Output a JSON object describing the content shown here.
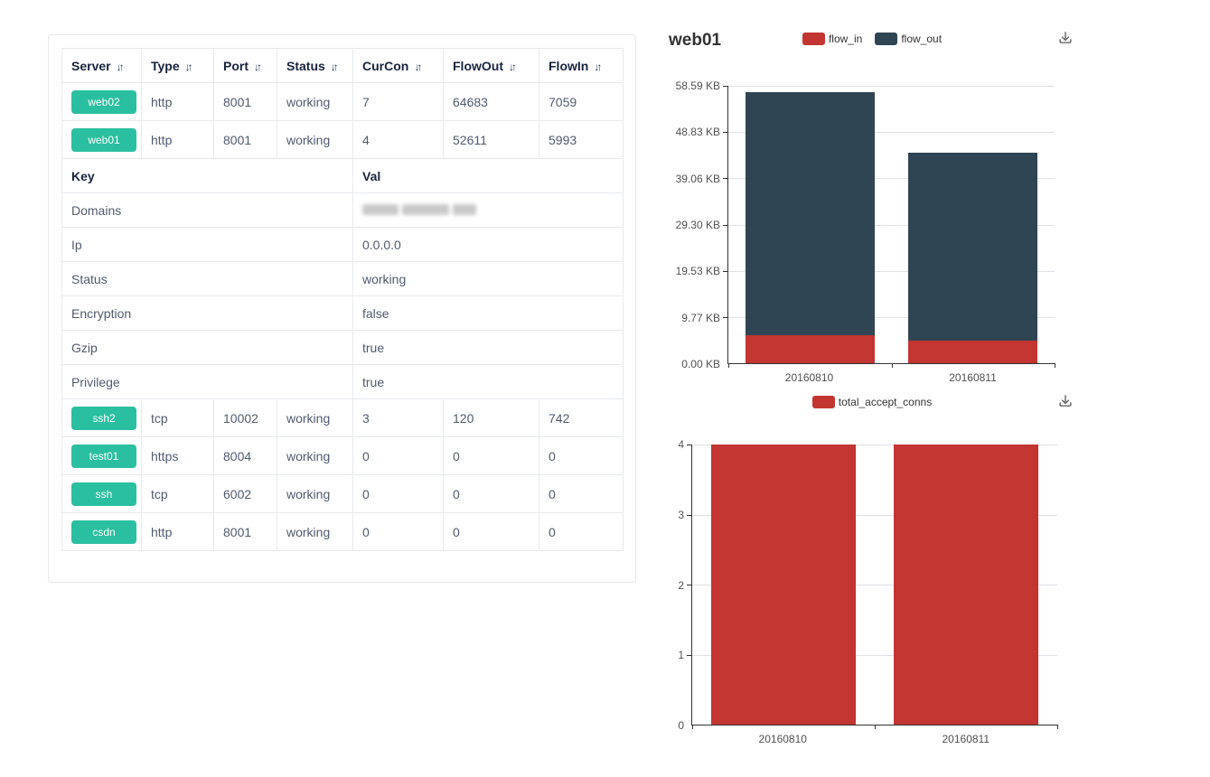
{
  "colors": {
    "accent_green": "#2abfa0",
    "bar_red": "#c23531",
    "bar_slate": "#2f4554",
    "table_border": "#e8eaec",
    "header_text": "#17233d",
    "cell_text": "#515a6e"
  },
  "table": {
    "sort_icon": "↓↑",
    "columns": [
      "Server",
      "Type",
      "Port",
      "Status",
      "CurCon",
      "FlowOut",
      "FlowIn"
    ],
    "rows_top": [
      {
        "server": "web02",
        "type": "http",
        "port": "8001",
        "status": "working",
        "curcon": "7",
        "flowout": "64683",
        "flowin": "7059"
      },
      {
        "server": "web01",
        "type": "http",
        "port": "8001",
        "status": "working",
        "curcon": "4",
        "flowout": "52611",
        "flowin": "5993"
      }
    ],
    "detail": {
      "key_header": "Key",
      "val_header": "Val",
      "rows": [
        {
          "key": "Domains",
          "val": "",
          "redacted": true
        },
        {
          "key": "Ip",
          "val": "0.0.0.0"
        },
        {
          "key": "Status",
          "val": "working"
        },
        {
          "key": "Encryption",
          "val": "false"
        },
        {
          "key": "Gzip",
          "val": "true"
        },
        {
          "key": "Privilege",
          "val": "true"
        }
      ]
    },
    "rows_bottom": [
      {
        "server": "ssh2",
        "type": "tcp",
        "port": "10002",
        "status": "working",
        "curcon": "3",
        "flowout": "120",
        "flowin": "742"
      },
      {
        "server": "test01",
        "type": "https",
        "port": "8004",
        "status": "working",
        "curcon": "0",
        "flowout": "0",
        "flowin": "0"
      },
      {
        "server": "ssh",
        "type": "tcp",
        "port": "6002",
        "status": "working",
        "curcon": "0",
        "flowout": "0",
        "flowin": "0"
      },
      {
        "server": "csdn",
        "type": "http",
        "port": "8001",
        "status": "working",
        "curcon": "0",
        "flowout": "0",
        "flowin": "0"
      }
    ]
  },
  "chart_data": [
    {
      "type": "bar",
      "stacked": true,
      "title": "web01",
      "categories": [
        "20160810",
        "20160811"
      ],
      "series": [
        {
          "name": "flow_in",
          "color": "#c23531",
          "values": [
            5.85,
            4.79
          ]
        },
        {
          "name": "flow_out",
          "color": "#2f4554",
          "values": [
            51.38,
            39.72
          ]
        }
      ],
      "unit": "KB",
      "ylim": [
        0,
        58.59
      ],
      "y_ticks": [
        "58.59 KB",
        "48.83 KB",
        "39.06 KB",
        "29.30 KB",
        "19.53 KB",
        "9.77 KB",
        "0.00 KB"
      ],
      "grid": true,
      "legend_position": "top-center",
      "toolbox": [
        "save-as-image"
      ]
    },
    {
      "type": "bar",
      "stacked": false,
      "title": "",
      "categories": [
        "20160810",
        "20160811"
      ],
      "series": [
        {
          "name": "total_accept_conns",
          "color": "#c23531",
          "values": [
            4,
            4
          ]
        }
      ],
      "unit": "",
      "ylim": [
        0,
        4
      ],
      "y_ticks": [
        "4",
        "3",
        "2",
        "1",
        "0"
      ],
      "grid": true,
      "legend_position": "top-center",
      "toolbox": [
        "save-as-image"
      ]
    }
  ]
}
